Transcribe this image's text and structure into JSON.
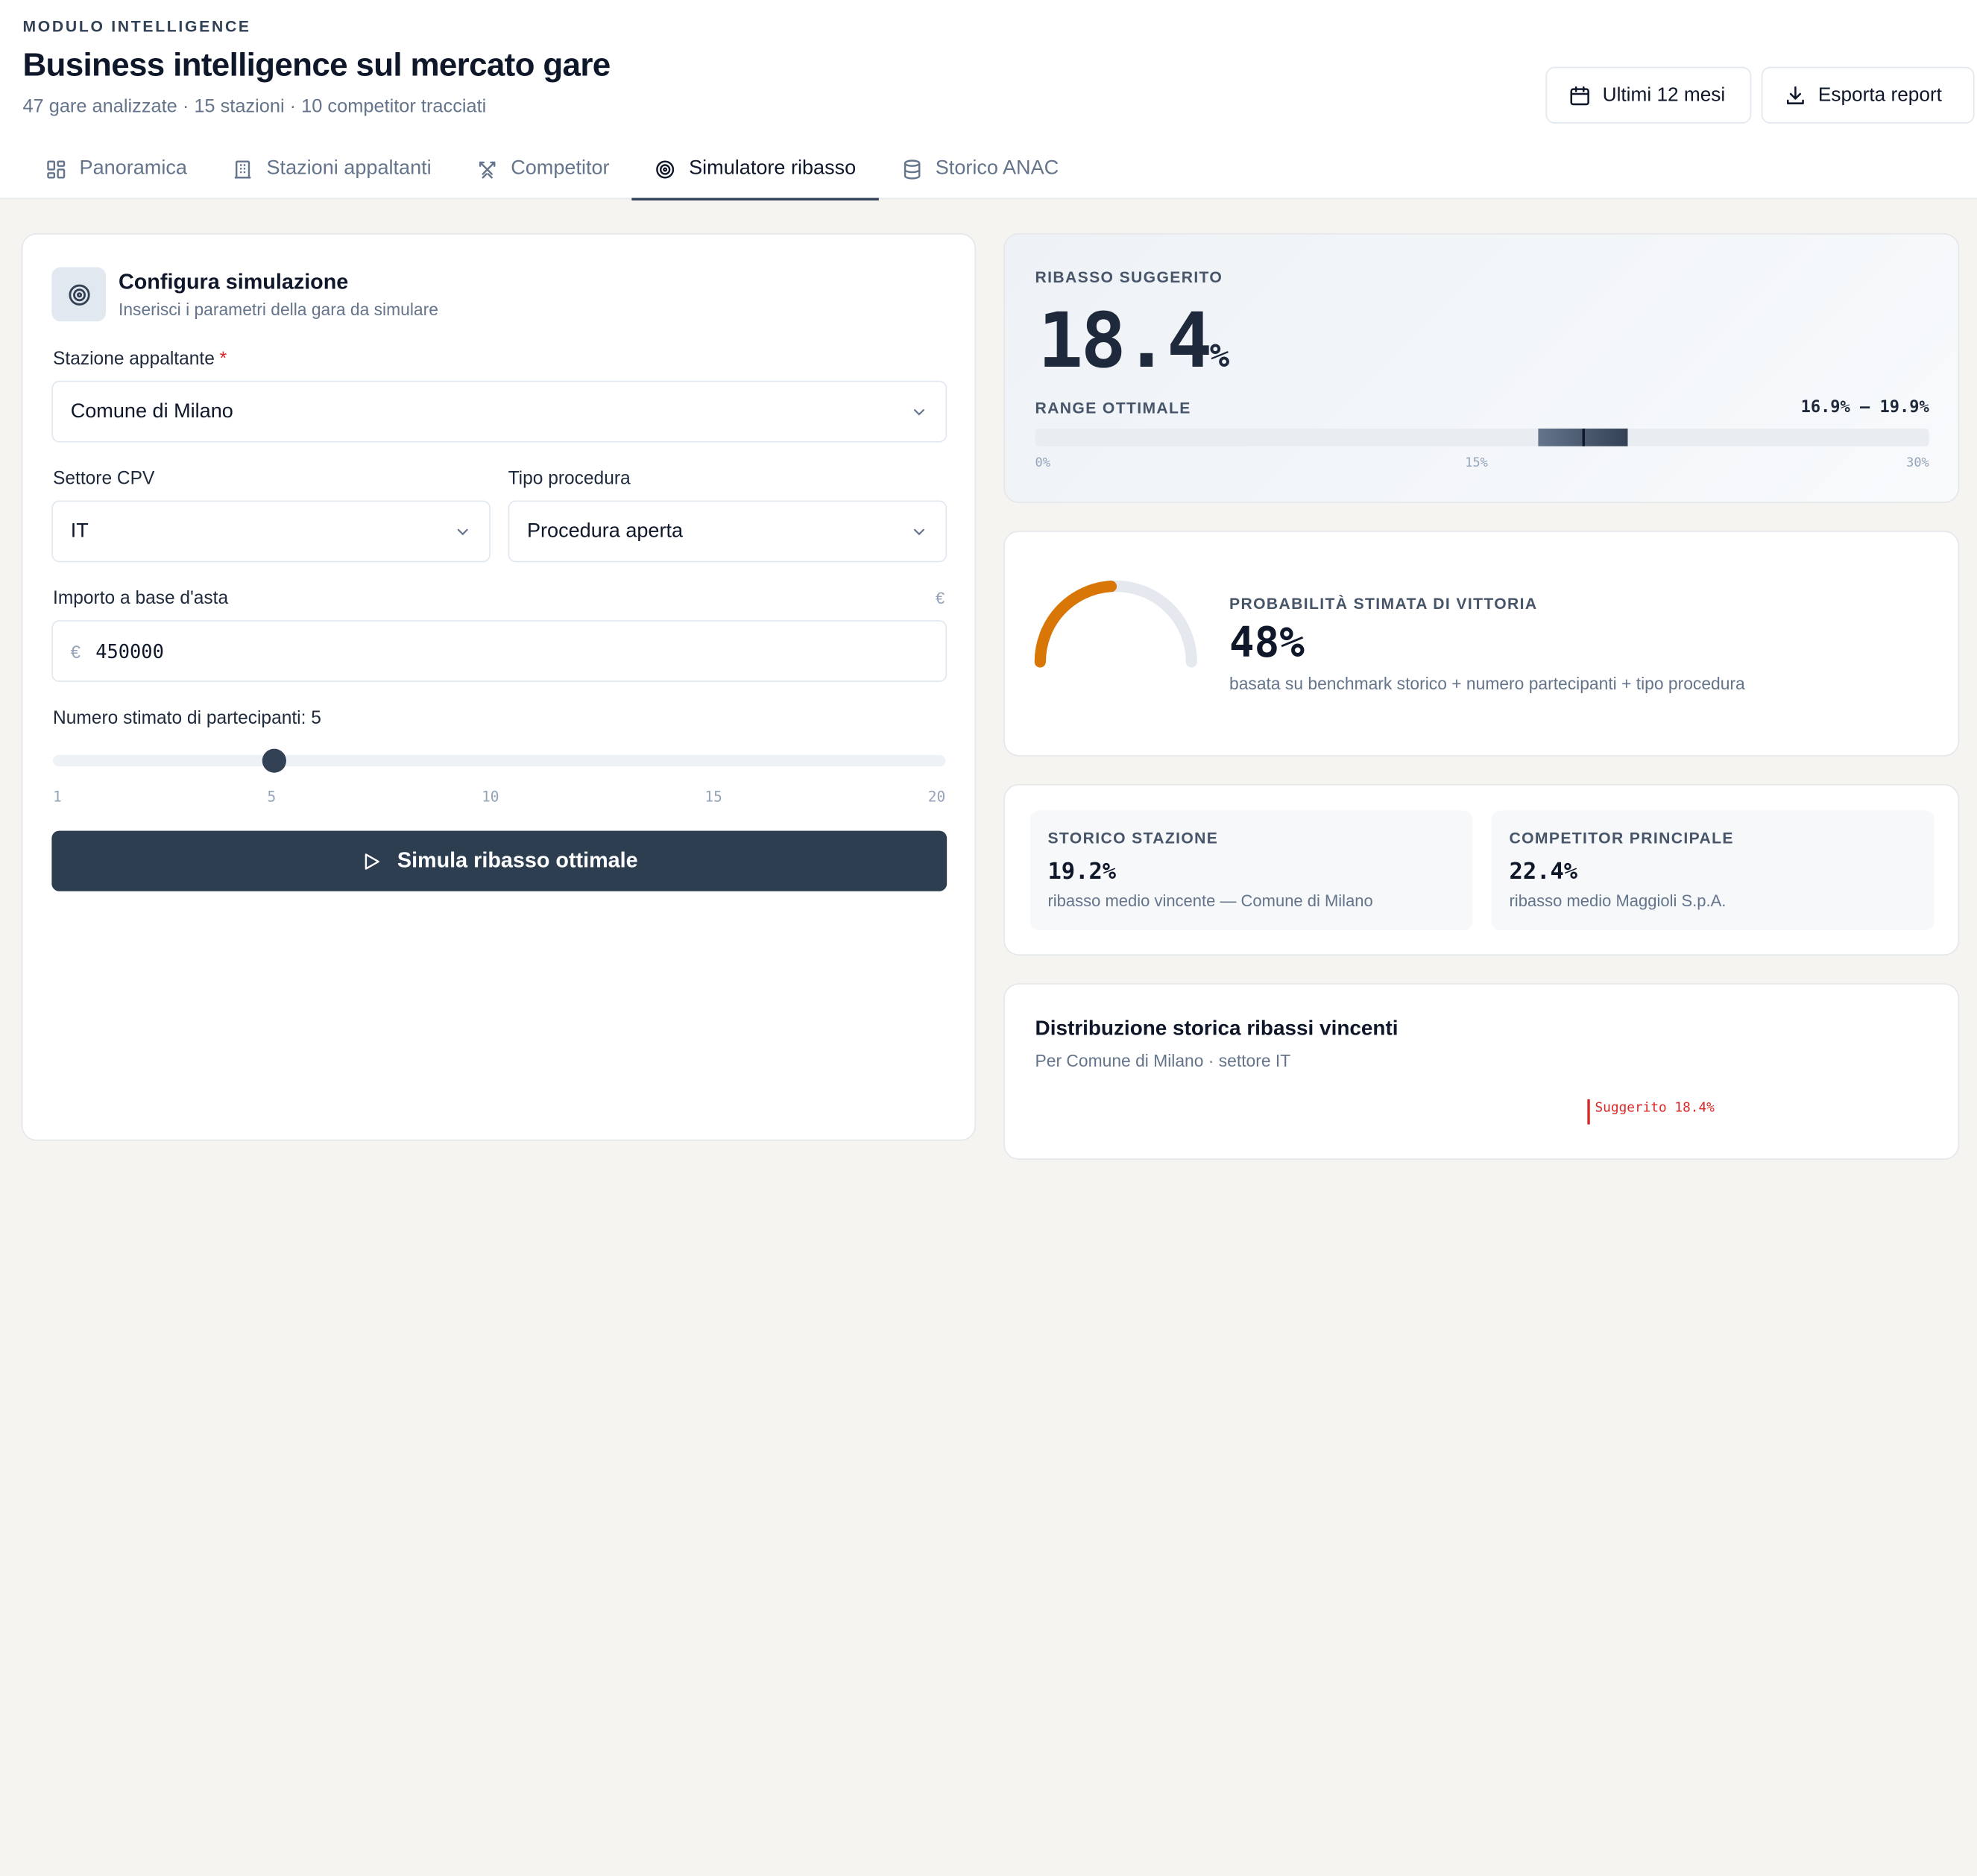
{
  "header": {
    "kicker": "MODULO INTELLIGENCE",
    "title": "Business intelligence sul mercato gare",
    "subtitle": "47 gare analizzate · 15 stazioni · 10 competitor tracciati",
    "period_label": "Ultimi 12 mesi",
    "export_label": "Esporta report"
  },
  "tabs": [
    {
      "label": "Panoramica",
      "icon": "grid-icon"
    },
    {
      "label": "Stazioni appaltanti",
      "icon": "building-icon"
    },
    {
      "label": "Competitor",
      "icon": "swords-icon"
    },
    {
      "label": "Simulatore ribasso",
      "icon": "target-icon",
      "active": true
    },
    {
      "label": "Storico ANAC",
      "icon": "database-icon"
    }
  ],
  "config": {
    "title": "Configura simulazione",
    "subtitle": "Inserisci i parametri della gara da simulare",
    "station_label": "Stazione appaltante",
    "station_required": "*",
    "station_value": "Comune di Milano",
    "cpv_label": "Settore CPV",
    "cpv_value": "IT",
    "procedure_label": "Tipo procedura",
    "procedure_value": "Procedura aperta",
    "amount_label": "Importo a base d'asta",
    "amount_unit": "€",
    "amount_prefix": "€",
    "amount_value": "450000",
    "participants_label": "Numero stimato di partecipanti: 5",
    "participants_value": 5,
    "participants_min": 1,
    "participants_max": 20,
    "slider_ticks": [
      "1",
      "5",
      "10",
      "15",
      "20"
    ],
    "simulate_label": "Simula ribasso ottimale"
  },
  "suggested": {
    "caption": "RIBASSO SUGGERITO",
    "value": "18.4",
    "unit": "%",
    "range_caption": "RANGE OTTIMALE",
    "range_text": "16.9% — 19.9%",
    "range_low": 16.9,
    "range_high": 19.9,
    "marker": 18.4,
    "scale_max": 30,
    "axis_ticks": [
      "0%",
      "15%",
      "30%"
    ]
  },
  "probability": {
    "caption": "PROBABILITÀ STIMATA DI VITTORIA",
    "value": "48%",
    "percent": 48,
    "note": "basata su benchmark storico + numero partecipanti + tipo procedura",
    "color": "#d97706"
  },
  "stats": [
    {
      "caption": "STORICO STAZIONE",
      "value": "19.2%",
      "note": "ribasso medio vincente — Comune di Milano"
    },
    {
      "caption": "COMPETITOR PRINCIPALE",
      "value": "22.4%",
      "note": "ribasso medio Maggioli S.p.A."
    }
  ],
  "distribution": {
    "title": "Distribuzione storica ribassi vincenti",
    "subtitle": "Per Comune di Milano · settore IT",
    "marker_label": "Suggerito 18.4%"
  }
}
